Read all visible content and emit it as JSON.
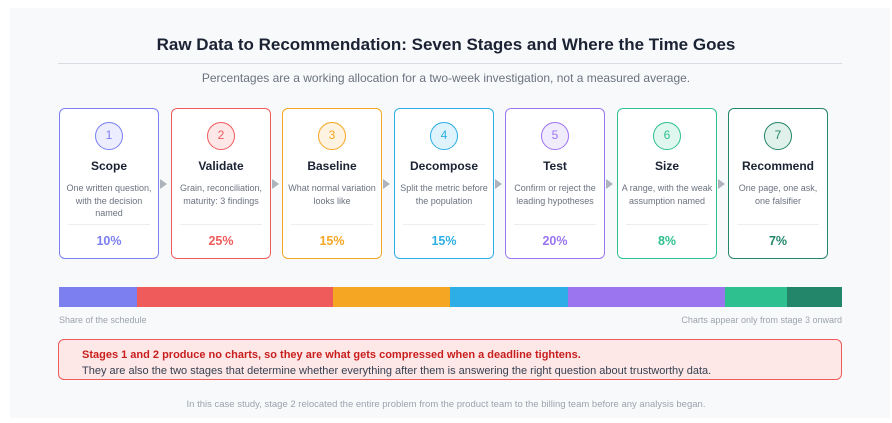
{
  "title": "Raw Data to Recommendation: Seven Stages and Where the Time Goes",
  "subtitle": "Percentages are a working allocation for a two-week investigation, not a measured average.",
  "stages": [
    {
      "number": "1",
      "name": "Scope",
      "description": "One written question,\nwith the decision named",
      "percent": "10%",
      "share": 10,
      "color": "#7b7ff0",
      "tint": "#ecedff"
    },
    {
      "number": "2",
      "name": "Validate",
      "description": "Grain, reconciliation,\nmaturity: 3 findings",
      "percent": "25%",
      "share": 25,
      "color": "#ef5b5b",
      "tint": "#fde7e7"
    },
    {
      "number": "3",
      "name": "Baseline",
      "description": "What normal variation\nlooks like",
      "percent": "15%",
      "share": 15,
      "color": "#f5a623",
      "tint": "#fef3e0"
    },
    {
      "number": "4",
      "name": "Decompose",
      "description": "Split the metric before\nthe population",
      "percent": "15%",
      "share": 15,
      "color": "#2eaee6",
      "tint": "#dff3fc"
    },
    {
      "number": "5",
      "name": "Test",
      "description": "Confirm or reject the\nleading hypotheses",
      "percent": "20%",
      "share": 20,
      "color": "#9b74f0",
      "tint": "#f1ebfe"
    },
    {
      "number": "6",
      "name": "Size",
      "description": "A range, with the weak\nassumption named",
      "percent": "8%",
      "share": 8,
      "color": "#2fc08f",
      "tint": "#e0f7ef"
    },
    {
      "number": "7",
      "name": "Recommend",
      "description": "One page, one ask,\none falsifier",
      "percent": "7%",
      "share": 7,
      "color": "#23866a",
      "tint": "#e0f1ec"
    }
  ],
  "bar_caption_left": "Share of the schedule",
  "bar_caption_right": "Charts appear only from stage 3 onward",
  "callout": {
    "headline": "Stages 1 and 2 produce no charts, so they are what gets compressed when a deadline tightens.",
    "body": "They are also the two stages that determine whether everything after them is answering the right question about trustworthy data."
  },
  "footnote": "In this case study, stage 2 relocated the entire problem from the product team to the billing team before any analysis began."
}
